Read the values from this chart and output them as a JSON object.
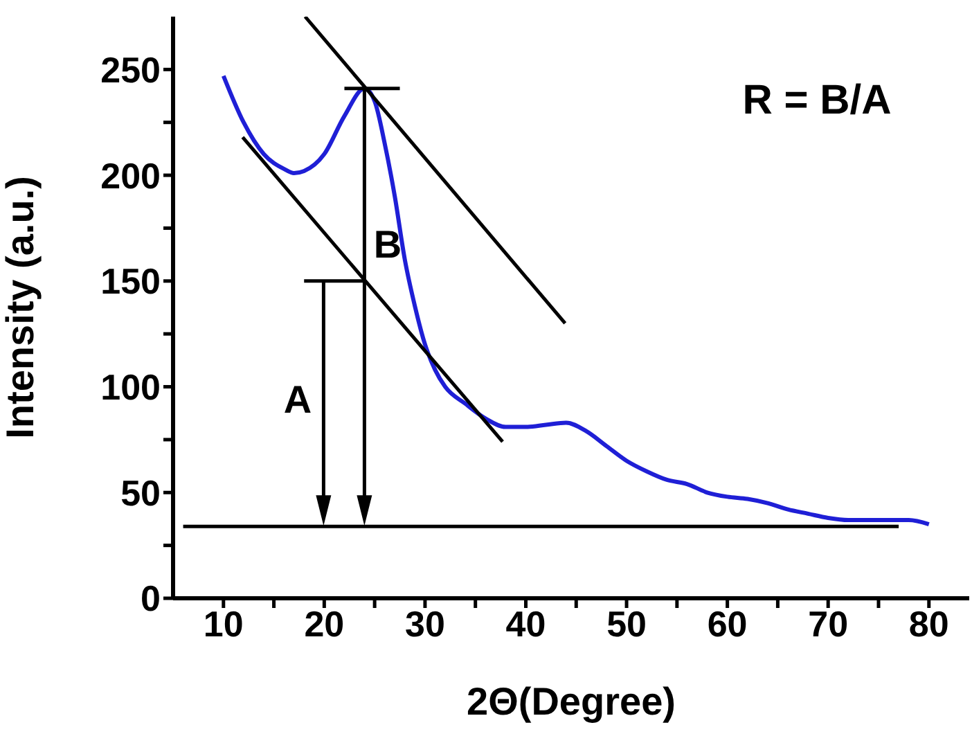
{
  "chart_data": {
    "type": "line",
    "xlabel": "2Θ(Degree)",
    "ylabel": "Intensity (a.u.)",
    "xlim": [
      5,
      84
    ],
    "ylim": [
      0,
      275
    ],
    "xticks": [
      10,
      {
        "value": 15,
        "label": null
      },
      20,
      {
        "value": 25,
        "label": null
      },
      30,
      {
        "value": 35,
        "label": null
      },
      40,
      {
        "value": 45,
        "label": null
      },
      50,
      {
        "value": 55,
        "label": null
      },
      60,
      {
        "value": 65,
        "label": null
      },
      70,
      {
        "value": 75,
        "label": null
      },
      80
    ],
    "yticks": [
      0,
      {
        "value": 25,
        "label": null
      },
      50,
      {
        "value": 75,
        "label": null
      },
      100,
      {
        "value": 125,
        "label": null
      },
      150,
      {
        "value": 175,
        "label": null
      },
      200,
      {
        "value": 225,
        "label": null
      },
      250
    ],
    "series": [
      {
        "color": "#1f1fd6",
        "x": [
          10,
          12,
          14,
          16,
          17,
          18,
          20,
          22,
          24,
          25,
          26,
          27,
          28,
          29,
          30,
          31,
          32,
          34,
          36,
          38,
          40,
          42,
          44,
          46,
          48,
          50,
          52,
          54,
          56,
          58,
          60,
          62,
          64,
          66,
          68,
          70,
          72,
          76,
          78,
          80
        ],
        "values": [
          247,
          225,
          210,
          203,
          201,
          202,
          210,
          228,
          241,
          235,
          215,
          190,
          160,
          138,
          120,
          108,
          100,
          92,
          85,
          81,
          81,
          82,
          83,
          79,
          72,
          65,
          60,
          56,
          54,
          50,
          48,
          47,
          45,
          42,
          40,
          38,
          37,
          37,
          37,
          35
        ]
      },
      {
        "color": "#000000",
        "x": [
          18.1,
          43.9
        ],
        "values": [
          275,
          130
        ]
      },
      {
        "color": "#000000",
        "x": [
          11.9,
          37.7
        ],
        "values": [
          218,
          74
        ]
      },
      {
        "color": "#000000",
        "x": [
          6,
          77
        ],
        "values": [
          34,
          34
        ]
      },
      {
        "color": "#000000",
        "x": [
          22,
          27.5
        ],
        "values": [
          241,
          241
        ]
      },
      {
        "color": "#000000",
        "x": [
          18,
          24
        ],
        "values": [
          150,
          150
        ]
      }
    ],
    "annotations": [
      "A",
      "B",
      "R = B/A"
    ]
  }
}
